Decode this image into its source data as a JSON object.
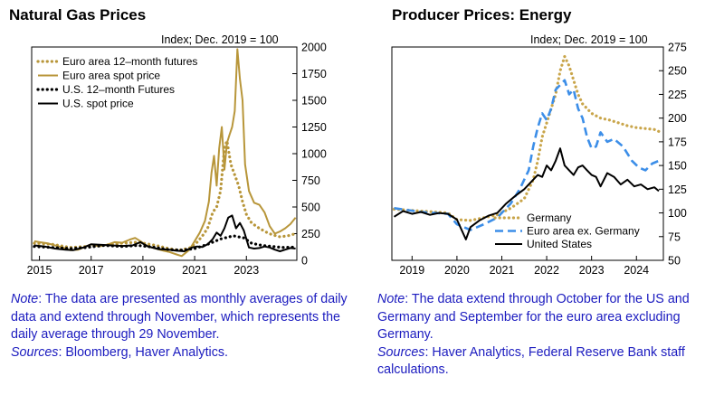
{
  "charts": [
    {
      "id": "left",
      "title": "Natural Gas Prices",
      "unit_label": "Index; Dec. 2019 = 100",
      "note": {
        "label": "Note",
        "text": ": The data are presented as monthly averages of daily data and extend through November, which represents the daily average through 29 November.",
        "sources_label": "Sources",
        "sources_text": ": Bloomberg, Haver Analytics."
      },
      "colors": {
        "gold": "#b8963a",
        "black": "#000000"
      }
    },
    {
      "id": "right",
      "title": "Producer Prices: Energy",
      "unit_label": "Index; Dec. 2019 = 100",
      "note": {
        "label": "Note",
        "text": ": The data extend through October for the US and Germany and September for the euro area excluding Germany.",
        "sources_label": "Sources",
        "sources_text": ": Haver Analytics, Federal Reserve Bank staff calculations."
      },
      "colors": {
        "gold": "#c9a54a",
        "blue": "#3c8ee8",
        "black": "#000000"
      }
    }
  ],
  "chart_data": [
    {
      "type": "line",
      "title": "Natural Gas Prices",
      "ylabel": "Index; Dec. 2019 = 100",
      "ylim": [
        0,
        2000
      ],
      "xlim": [
        2014.7,
        2024.95
      ],
      "y_ticks": [
        0,
        250,
        500,
        750,
        1000,
        1250,
        1500,
        1750,
        2000
      ],
      "x_ticks": [
        2015,
        2017,
        2019,
        2021,
        2023
      ],
      "legend_position": "top-left",
      "series": [
        {
          "name": "Euro area 12–month futures",
          "style": "dotted",
          "color": "#b8963a",
          "x": [
            2014.8,
            2015.5,
            2016.2,
            2016.8,
            2017.5,
            2018.2,
            2018.8,
            2019.5,
            2020.0,
            2020.4,
            2020.8,
            2021.1,
            2021.3,
            2021.5,
            2021.7,
            2021.85,
            2022.0,
            2022.15,
            2022.25,
            2022.4,
            2022.55,
            2022.7,
            2022.85,
            2023.0,
            2023.2,
            2023.5,
            2023.8,
            2024.0,
            2024.3,
            2024.6,
            2024.9
          ],
          "y": [
            160,
            150,
            120,
            130,
            140,
            160,
            170,
            140,
            110,
            95,
            115,
            170,
            230,
            300,
            450,
            500,
            650,
            1050,
            1120,
            900,
            800,
            700,
            550,
            430,
            350,
            300,
            260,
            240,
            220,
            230,
            250
          ]
        },
        {
          "name": "Euro area spot price",
          "style": "solid",
          "color": "#b8963a",
          "x": [
            2014.8,
            2015.0,
            2015.3,
            2015.6,
            2015.9,
            2016.2,
            2016.5,
            2016.8,
            2017.0,
            2017.3,
            2017.6,
            2017.9,
            2018.2,
            2018.5,
            2018.7,
            2018.9,
            2019.2,
            2019.5,
            2019.8,
            2020.0,
            2020.3,
            2020.5,
            2020.8,
            2021.0,
            2021.2,
            2021.4,
            2021.55,
            2021.65,
            2021.75,
            2021.85,
            2021.95,
            2022.05,
            2022.15,
            2022.25,
            2022.35,
            2022.45,
            2022.55,
            2022.65,
            2022.75,
            2022.85,
            2022.95,
            2023.1,
            2023.3,
            2023.5,
            2023.7,
            2023.9,
            2024.1,
            2024.3,
            2024.5,
            2024.7,
            2024.9
          ],
          "y": [
            180,
            170,
            160,
            140,
            120,
            95,
            100,
            130,
            150,
            130,
            145,
            170,
            165,
            195,
            210,
            180,
            130,
            110,
            90,
            80,
            55,
            40,
            100,
            180,
            260,
            370,
            550,
            820,
            980,
            700,
            1050,
            1250,
            850,
            1100,
            1180,
            1250,
            1400,
            1980,
            1700,
            1500,
            900,
            650,
            540,
            520,
            450,
            320,
            250,
            270,
            300,
            340,
            400
          ]
        },
        {
          "name": "U.S. 12–month Futures",
          "style": "dotted",
          "color": "#000000",
          "x": [
            2014.8,
            2015.5,
            2016.2,
            2016.8,
            2017.5,
            2018.2,
            2018.8,
            2019.5,
            2020.0,
            2020.5,
            2021.0,
            2021.5,
            2022.0,
            2022.5,
            2022.9,
            2023.2,
            2023.6,
            2024.0,
            2024.4,
            2024.9
          ],
          "y": [
            130,
            120,
            110,
            120,
            140,
            130,
            140,
            120,
            100,
            95,
            110,
            150,
            200,
            230,
            210,
            160,
            140,
            130,
            120,
            125
          ]
        },
        {
          "name": "U.S. spot price",
          "style": "solid",
          "color": "#000000",
          "x": [
            2014.8,
            2015.2,
            2015.6,
            2016.0,
            2016.3,
            2016.7,
            2017.0,
            2017.4,
            2017.8,
            2018.2,
            2018.6,
            2018.9,
            2019.2,
            2019.6,
            2020.0,
            2020.3,
            2020.6,
            2020.9,
            2021.1,
            2021.3,
            2021.5,
            2021.7,
            2021.85,
            2022.0,
            2022.15,
            2022.3,
            2022.45,
            2022.6,
            2022.75,
            2022.9,
            2023.1,
            2023.3,
            2023.5,
            2023.7,
            2023.9,
            2024.1,
            2024.3,
            2024.5,
            2024.7,
            2024.9
          ],
          "y": [
            140,
            130,
            110,
            100,
            95,
            120,
            150,
            145,
            140,
            135,
            140,
            170,
            130,
            105,
            100,
            90,
            85,
            120,
            130,
            125,
            150,
            200,
            260,
            230,
            300,
            400,
            420,
            300,
            350,
            280,
            120,
            110,
            115,
            130,
            120,
            100,
            85,
            100,
            115,
            110
          ]
        }
      ]
    },
    {
      "type": "line",
      "title": "Producer Prices: Energy",
      "ylabel": "Index; Dec. 2019 = 100",
      "ylim": [
        50,
        275
      ],
      "xlim": [
        2018.55,
        2024.6
      ],
      "y_ticks": [
        50,
        75,
        100,
        125,
        150,
        175,
        200,
        225,
        250,
        275
      ],
      "x_ticks": [
        2019,
        2020,
        2021,
        2022,
        2023,
        2024
      ],
      "legend_position": "bottom-right",
      "series": [
        {
          "name": "Germany",
          "style": "dotted",
          "color": "#c9a54a",
          "x": [
            2018.6,
            2018.9,
            2019.2,
            2019.5,
            2019.8,
            2020.0,
            2020.3,
            2020.6,
            2020.9,
            2021.2,
            2021.5,
            2021.7,
            2021.8,
            2021.9,
            2022.0,
            2022.1,
            2022.2,
            2022.3,
            2022.4,
            2022.5,
            2022.6,
            2022.7,
            2022.8,
            2023.0,
            2023.2,
            2023.4,
            2023.6,
            2023.8,
            2024.0,
            2024.2,
            2024.4,
            2024.5
          ],
          "y": [
            104,
            103,
            102,
            101,
            100,
            93,
            92,
            95,
            98,
            105,
            115,
            135,
            155,
            180,
            195,
            210,
            225,
            250,
            265,
            255,
            240,
            225,
            215,
            205,
            200,
            198,
            195,
            192,
            190,
            189,
            188,
            186
          ]
        },
        {
          "name": "Euro area ex. Germany",
          "style": "dashed",
          "color": "#3c8ee8",
          "x": [
            2018.6,
            2018.9,
            2019.2,
            2019.5,
            2019.8,
            2020.0,
            2020.3,
            2020.6,
            2020.9,
            2021.2,
            2021.4,
            2021.6,
            2021.7,
            2021.8,
            2021.9,
            2022.0,
            2022.1,
            2022.2,
            2022.3,
            2022.4,
            2022.5,
            2022.6,
            2022.7,
            2022.8,
            2022.9,
            2023.0,
            2023.1,
            2023.2,
            2023.35,
            2023.5,
            2023.7,
            2023.9,
            2024.05,
            2024.2,
            2024.35,
            2024.5
          ],
          "y": [
            105,
            103,
            101,
            100,
            99,
            88,
            82,
            88,
            95,
            110,
            125,
            145,
            170,
            190,
            205,
            198,
            210,
            230,
            235,
            240,
            225,
            230,
            210,
            200,
            180,
            168,
            170,
            185,
            175,
            178,
            170,
            155,
            148,
            145,
            152,
            155
          ]
        },
        {
          "name": "United States",
          "style": "solid",
          "color": "#000000",
          "x": [
            2018.6,
            2018.8,
            2019.0,
            2019.2,
            2019.4,
            2019.6,
            2019.8,
            2020.0,
            2020.2,
            2020.3,
            2020.5,
            2020.7,
            2020.9,
            2021.1,
            2021.3,
            2021.5,
            2021.7,
            2021.8,
            2021.9,
            2022.0,
            2022.1,
            2022.2,
            2022.3,
            2022.4,
            2022.5,
            2022.6,
            2022.7,
            2022.8,
            2022.9,
            2023.0,
            2023.1,
            2023.2,
            2023.35,
            2023.5,
            2023.65,
            2023.8,
            2023.95,
            2024.1,
            2024.25,
            2024.4,
            2024.5
          ],
          "y": [
            96,
            102,
            99,
            101,
            98,
            100,
            99,
            93,
            72,
            85,
            92,
            97,
            100,
            110,
            118,
            125,
            135,
            140,
            138,
            150,
            145,
            155,
            168,
            150,
            145,
            140,
            148,
            150,
            145,
            140,
            138,
            128,
            142,
            138,
            130,
            135,
            128,
            130,
            125,
            127,
            123
          ]
        }
      ]
    }
  ]
}
